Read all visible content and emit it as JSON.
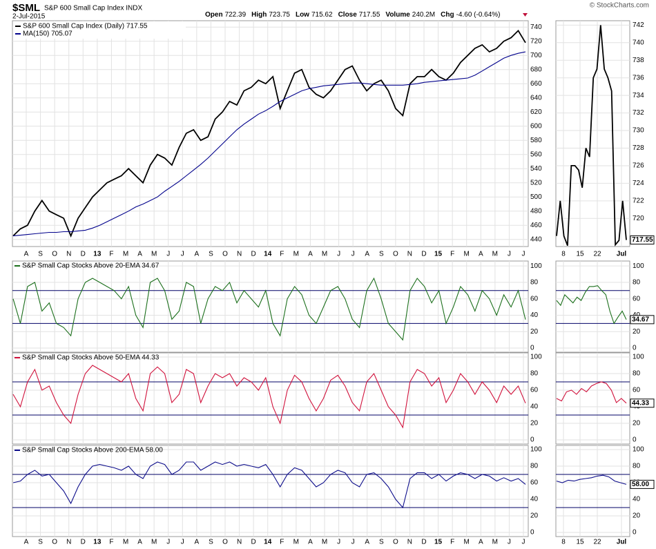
{
  "header": {
    "symbol": "$SML",
    "name": "S&P 600 Small Cap Index INDX",
    "date": "2-Jul-2015",
    "quote": [
      {
        "label": "Open",
        "value": "722.39"
      },
      {
        "label": "High",
        "value": "723.75"
      },
      {
        "label": "Low",
        "value": "715.62"
      },
      {
        "label": "Close",
        "value": "717.55"
      },
      {
        "label": "Volume",
        "value": "240.2M"
      },
      {
        "label": "Chg",
        "value": "-4.60 (-0.64%)"
      }
    ],
    "copyright": "© StockCharts.com"
  },
  "x_axis": {
    "categories": [
      "A",
      "S",
      "O",
      "N",
      "D",
      "13",
      "F",
      "M",
      "A",
      "M",
      "J",
      "J",
      "A",
      "S",
      "O",
      "N",
      "D",
      "14",
      "F",
      "M",
      "A",
      "M",
      "J",
      "J",
      "A",
      "S",
      "O",
      "N",
      "D",
      "15",
      "F",
      "M",
      "A",
      "M",
      "J",
      "J"
    ],
    "zoom_categories": [
      "8",
      "15",
      "22",
      "Jul"
    ]
  },
  "chart_data": [
    {
      "type": "line",
      "ylim": [
        430,
        749
      ],
      "yticks": [
        440,
        460,
        480,
        500,
        520,
        540,
        560,
        580,
        600,
        620,
        640,
        660,
        680,
        700,
        720,
        740
      ],
      "grid": true,
      "series": [
        {
          "name": "S&P 600 Small Cap Index (Daily) 717.55",
          "color": "#000000",
          "values": [
            445,
            455,
            460,
            480,
            495,
            480,
            475,
            470,
            445,
            470,
            485,
            500,
            510,
            520,
            525,
            530,
            540,
            530,
            520,
            545,
            560,
            555,
            545,
            570,
            590,
            595,
            580,
            585,
            610,
            620,
            635,
            630,
            650,
            655,
            665,
            660,
            670,
            625,
            650,
            675,
            680,
            655,
            645,
            640,
            650,
            665,
            680,
            685,
            665,
            650,
            660,
            665,
            650,
            625,
            615,
            660,
            670,
            670,
            680,
            670,
            665,
            675,
            690,
            700,
            710,
            715,
            705,
            710,
            720,
            725,
            735,
            718
          ]
        },
        {
          "name": "MA(150) 705.07",
          "color": "#00008b",
          "values": [
            445,
            446,
            447,
            448,
            449,
            450,
            450,
            451,
            451,
            452,
            453,
            456,
            460,
            465,
            470,
            475,
            480,
            486,
            490,
            495,
            500,
            508,
            515,
            522,
            530,
            538,
            546,
            555,
            565,
            575,
            585,
            595,
            603,
            610,
            617,
            622,
            628,
            635,
            640,
            645,
            650,
            653,
            655,
            657,
            658,
            659,
            660,
            661,
            661,
            660,
            659,
            658,
            658,
            658,
            658,
            659,
            660,
            662,
            663,
            664,
            665,
            666,
            667,
            668,
            672,
            678,
            684,
            690,
            696,
            700,
            703,
            705
          ]
        }
      ],
      "zoom": {
        "ylim": [
          716.8,
          742.5
        ],
        "yticks": [
          720,
          722,
          724,
          726,
          728,
          730,
          732,
          734,
          736,
          738,
          740,
          742
        ],
        "color": "#000000",
        "values": [
          718,
          722,
          718,
          716.9,
          726,
          726,
          725.5,
          723.5,
          728,
          727,
          736,
          737,
          742,
          737,
          736,
          734.5,
          717,
          717.5,
          722,
          717.55
        ],
        "last_label": "717.55"
      }
    },
    {
      "type": "line",
      "title": "S&P Small Cap Stocks Above 20-EMA 34.67",
      "ylim": [
        -5,
        106
      ],
      "yticks": [
        0,
        20,
        40,
        60,
        80,
        100
      ],
      "hlines": [
        30,
        70
      ],
      "grid": true,
      "series": [
        {
          "color": "#1a6e1a",
          "values": [
            60,
            30,
            75,
            80,
            45,
            55,
            30,
            25,
            15,
            60,
            80,
            85,
            80,
            75,
            70,
            60,
            75,
            40,
            25,
            80,
            85,
            70,
            35,
            45,
            80,
            75,
            30,
            60,
            75,
            70,
            80,
            55,
            70,
            60,
            50,
            70,
            30,
            15,
            60,
            75,
            65,
            40,
            30,
            50,
            70,
            75,
            60,
            35,
            25,
            70,
            85,
            60,
            30,
            20,
            10,
            70,
            85,
            75,
            55,
            70,
            30,
            50,
            75,
            65,
            45,
            70,
            60,
            40,
            65,
            50,
            70,
            34.67
          ]
        }
      ],
      "zoom": {
        "ylim": [
          -5,
          106
        ],
        "yticks": [
          0,
          20,
          40,
          60,
          80,
          100
        ],
        "color": "#1a6e1a",
        "values": [
          58,
          52,
          65,
          60,
          55,
          62,
          58,
          68,
          75,
          75,
          76,
          70,
          65,
          45,
          30,
          38,
          45,
          34.67
        ],
        "last_label": "34.67"
      }
    },
    {
      "type": "line",
      "title": "S&P Small Cap Stocks Above 50-EMA 44.33",
      "ylim": [
        -5,
        105
      ],
      "yticks": [
        0,
        20,
        40,
        60,
        80,
        100
      ],
      "hlines": [
        30,
        70
      ],
      "grid": true,
      "series": [
        {
          "color": "#d0103a",
          "values": [
            55,
            40,
            70,
            85,
            60,
            65,
            45,
            30,
            20,
            55,
            80,
            90,
            85,
            80,
            75,
            70,
            80,
            50,
            35,
            80,
            88,
            80,
            45,
            55,
            85,
            80,
            45,
            65,
            80,
            75,
            80,
            65,
            75,
            70,
            60,
            75,
            40,
            20,
            60,
            78,
            70,
            50,
            35,
            50,
            72,
            78,
            65,
            45,
            35,
            70,
            80,
            60,
            40,
            30,
            15,
            70,
            85,
            80,
            65,
            75,
            45,
            60,
            80,
            70,
            55,
            70,
            60,
            45,
            65,
            55,
            65,
            44.33
          ]
        }
      ],
      "zoom": {
        "ylim": [
          -5,
          105
        ],
        "yticks": [
          0,
          20,
          40,
          60,
          80,
          100
        ],
        "color": "#d0103a",
        "values": [
          50,
          47,
          58,
          60,
          55,
          62,
          58,
          65,
          68,
          70,
          68,
          60,
          45,
          50,
          44.33
        ],
        "last_label": "44.33"
      }
    },
    {
      "type": "line",
      "title": "S&P Small Cap Stocks Above 200-EMA 58.00",
      "ylim": [
        -5,
        105
      ],
      "yticks": [
        0,
        20,
        40,
        60,
        80,
        100
      ],
      "hlines": [
        30,
        70
      ],
      "grid": true,
      "series": [
        {
          "color": "#0c0c8a",
          "values": [
            60,
            62,
            70,
            75,
            68,
            70,
            60,
            50,
            35,
            55,
            70,
            80,
            82,
            80,
            78,
            75,
            80,
            70,
            65,
            80,
            85,
            82,
            70,
            75,
            85,
            85,
            75,
            80,
            85,
            82,
            85,
            80,
            82,
            80,
            78,
            82,
            70,
            55,
            70,
            78,
            75,
            65,
            55,
            60,
            70,
            75,
            72,
            60,
            55,
            70,
            72,
            65,
            55,
            40,
            30,
            65,
            72,
            72,
            65,
            70,
            62,
            68,
            72,
            70,
            65,
            70,
            68,
            62,
            66,
            62,
            65,
            58
          ]
        }
      ],
      "zoom": {
        "ylim": [
          -5,
          105
        ],
        "yticks": [
          0,
          20,
          40,
          60,
          80,
          100
        ],
        "color": "#0c0c8a",
        "values": [
          62,
          60,
          63,
          62,
          64,
          65,
          66,
          68,
          69,
          67,
          62,
          60,
          58
        ],
        "last_label": "58.00"
      }
    }
  ]
}
